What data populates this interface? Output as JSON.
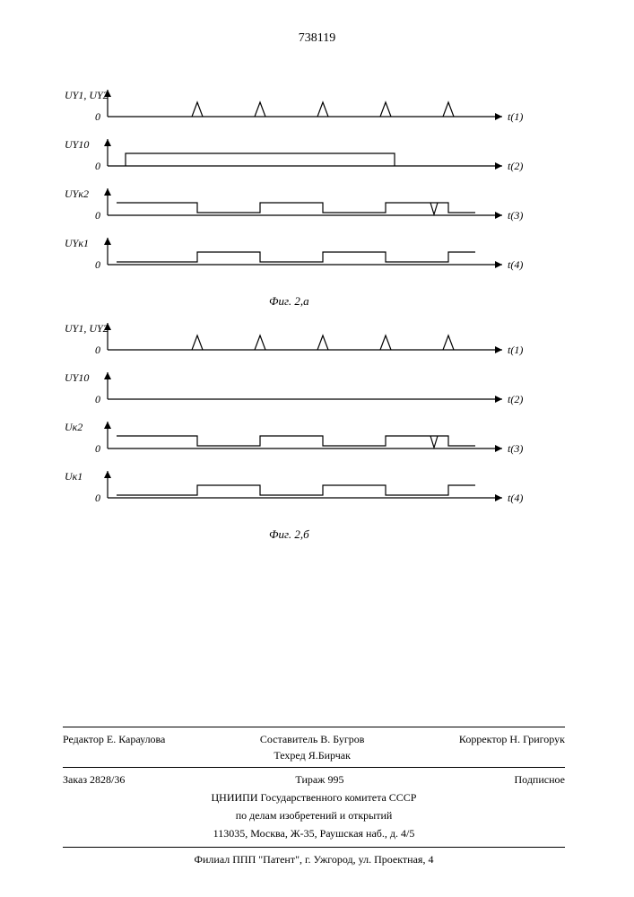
{
  "page_number": "738119",
  "figure_a": {
    "caption": "Фиг. 2,а",
    "traces": [
      {
        "y_label": "U_{Y1}, U_{Y2}",
        "zero": "0",
        "t_label": "t(1)",
        "type": "pulses"
      },
      {
        "y_label": "U_{Y10}",
        "zero": "0",
        "t_label": "t(2)",
        "type": "step_wide"
      },
      {
        "y_label": "U_{Yк2}",
        "zero": "0",
        "t_label": "t(3)",
        "type": "square_invert"
      },
      {
        "y_label": "U_{Yк1}",
        "zero": "0",
        "t_label": "t(4)",
        "type": "square"
      }
    ]
  },
  "figure_b": {
    "caption": "Фиг. 2,б",
    "traces": [
      {
        "y_label": "U_{Y1}, U_{Y2}",
        "zero": "0",
        "t_label": "t(1)",
        "type": "pulses"
      },
      {
        "y_label": "U_{Y10}",
        "zero": "0",
        "t_label": "t(2)",
        "type": "flat"
      },
      {
        "y_label": "U_{к2}",
        "zero": "0",
        "t_label": "t(3)",
        "type": "square_invert"
      },
      {
        "y_label": "U_{к1}",
        "zero": "0",
        "t_label": "t(4)",
        "type": "square"
      }
    ]
  },
  "style": {
    "line_color": "#000000",
    "line_width": 1.2,
    "background": "#ffffff",
    "axis_font_size": 12,
    "pulse_positions": [
      100,
      170,
      240,
      310,
      380
    ],
    "pulse_height": 16,
    "pulse_half_width": 6,
    "square_positions": [
      100,
      170,
      240,
      310,
      380
    ],
    "square_low": 3,
    "square_high": 14,
    "axis_length": 440,
    "row_spacing": 55
  },
  "footer": {
    "editor": "Редактор  Е. Караулова",
    "compiler": "Составитель В. Бугров",
    "techred": "Техред   Я.Бирчак",
    "corrector": "Корректор Н. Григорук",
    "order": "Заказ 2828/36",
    "circulation": "Тираж 995",
    "subscription": "Подписное",
    "org1": "ЦНИИПИ Государственного комитета СССР",
    "org2": "по делам изобретений и открытий",
    "address1": "113035, Москва, Ж-35, Раушская наб., д. 4/5",
    "branch": "Филиал ППП \"Патент\", г. Ужгород, ул. Проектная, 4"
  }
}
